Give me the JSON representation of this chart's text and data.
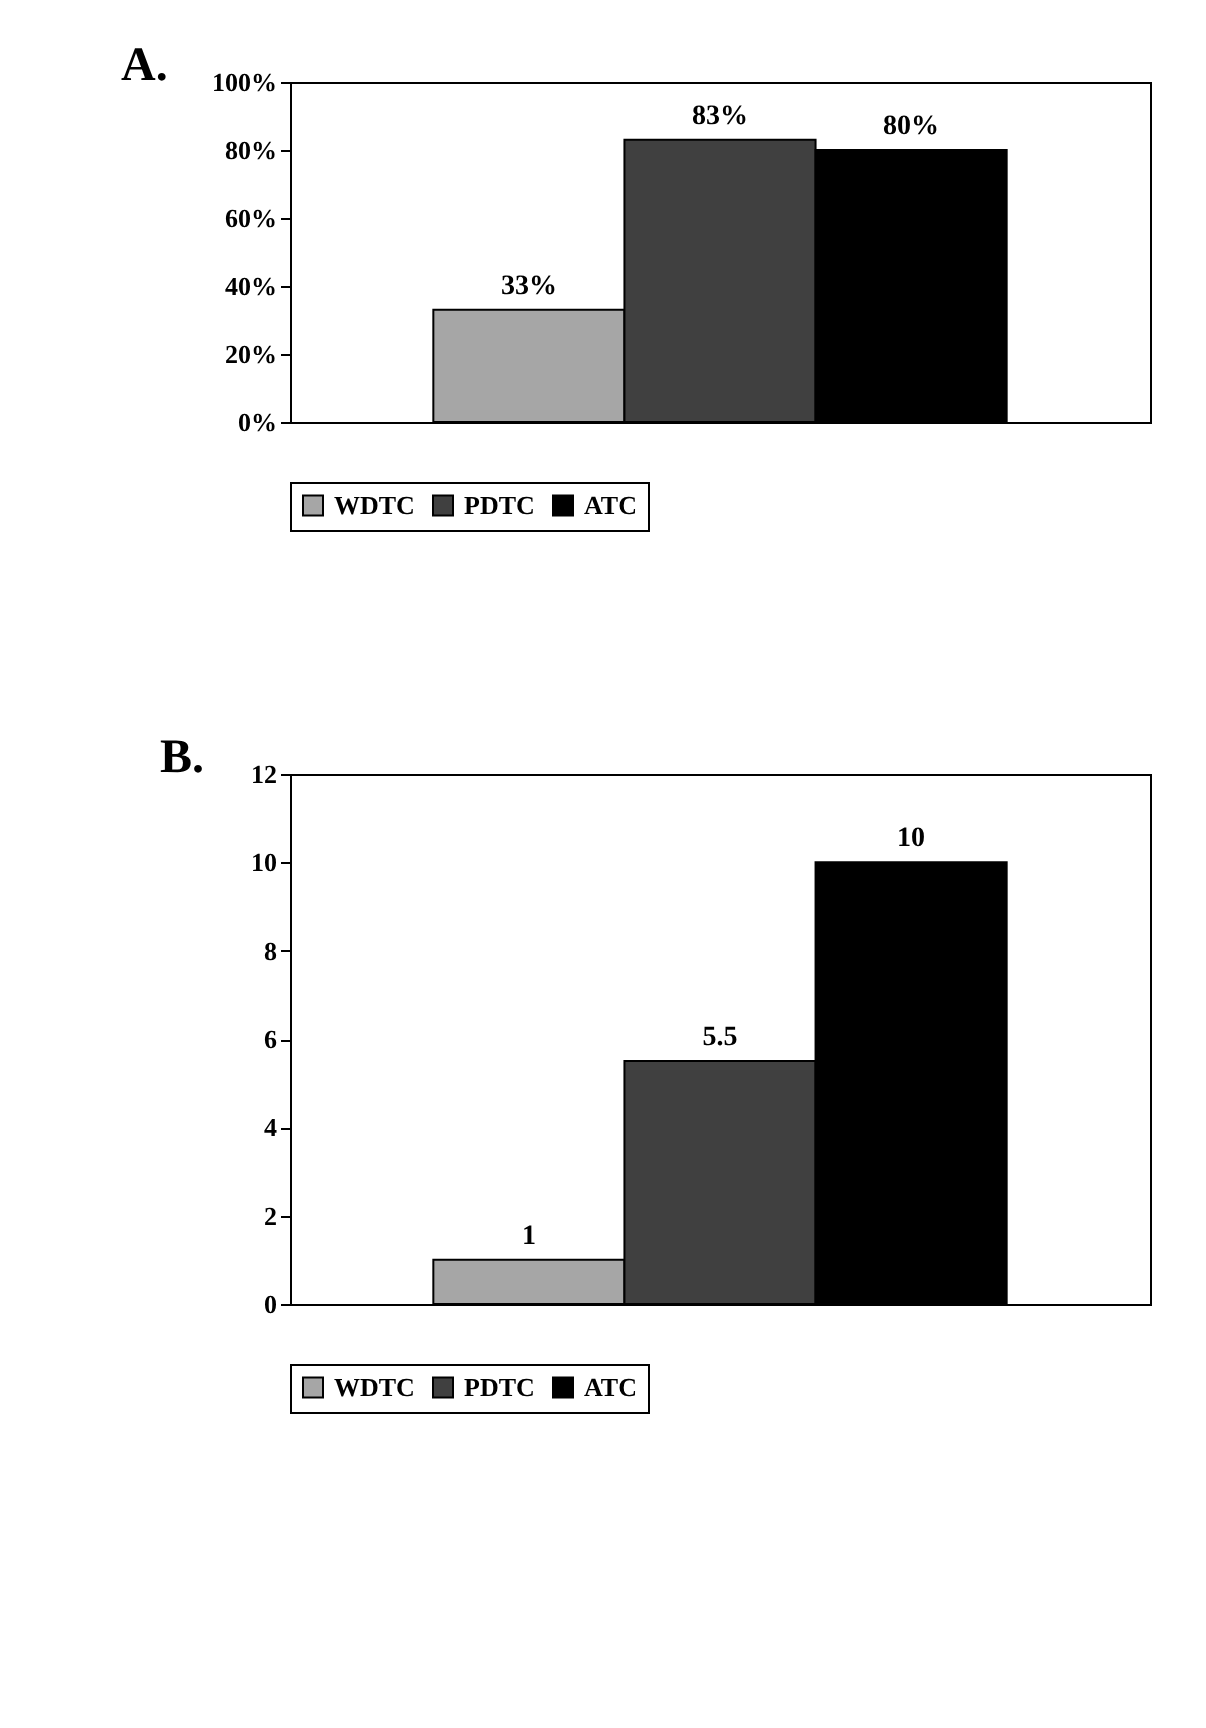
{
  "chart_data": [
    {
      "type": "bar",
      "title": "A.",
      "categories": [
        null
      ],
      "series": [
        {
          "name": "WDTC",
          "color": "#a6a6a6",
          "values": [
            33
          ],
          "value_labels": [
            "33%"
          ]
        },
        {
          "name": "PDTC",
          "color": "#404040",
          "values": [
            83
          ],
          "value_labels": [
            "83%"
          ]
        },
        {
          "name": "ATC",
          "color": "#000000",
          "values": [
            80
          ],
          "value_labels": [
            "80%"
          ]
        }
      ],
      "ylim": [
        0,
        100
      ],
      "yticks": [
        {
          "value": 0,
          "label": "0%"
        },
        {
          "value": 20,
          "label": "20%"
        },
        {
          "value": 40,
          "label": "40%"
        },
        {
          "value": 60,
          "label": "60%"
        },
        {
          "value": 80,
          "label": "80%"
        },
        {
          "value": 100,
          "label": "100%"
        }
      ],
      "grid": false,
      "legend": "bottom",
      "tick_labels": "y"
    },
    {
      "type": "bar",
      "title": "B.",
      "categories": [
        null
      ],
      "series": [
        {
          "name": "WDTC",
          "color": "#a6a6a6",
          "values": [
            1
          ]
        },
        {
          "name": "PDTC",
          "color": "#404040",
          "values": [
            5.5
          ]
        },
        {
          "name": "ATC",
          "color": "#000000",
          "values": [
            10
          ]
        }
      ],
      "ylim": [
        0,
        12
      ],
      "yticks": [
        0,
        2,
        4,
        6,
        8,
        10,
        12
      ],
      "grid": false,
      "legend": "bottom",
      "tick_labels": "y",
      "data_labels": true
    }
  ]
}
